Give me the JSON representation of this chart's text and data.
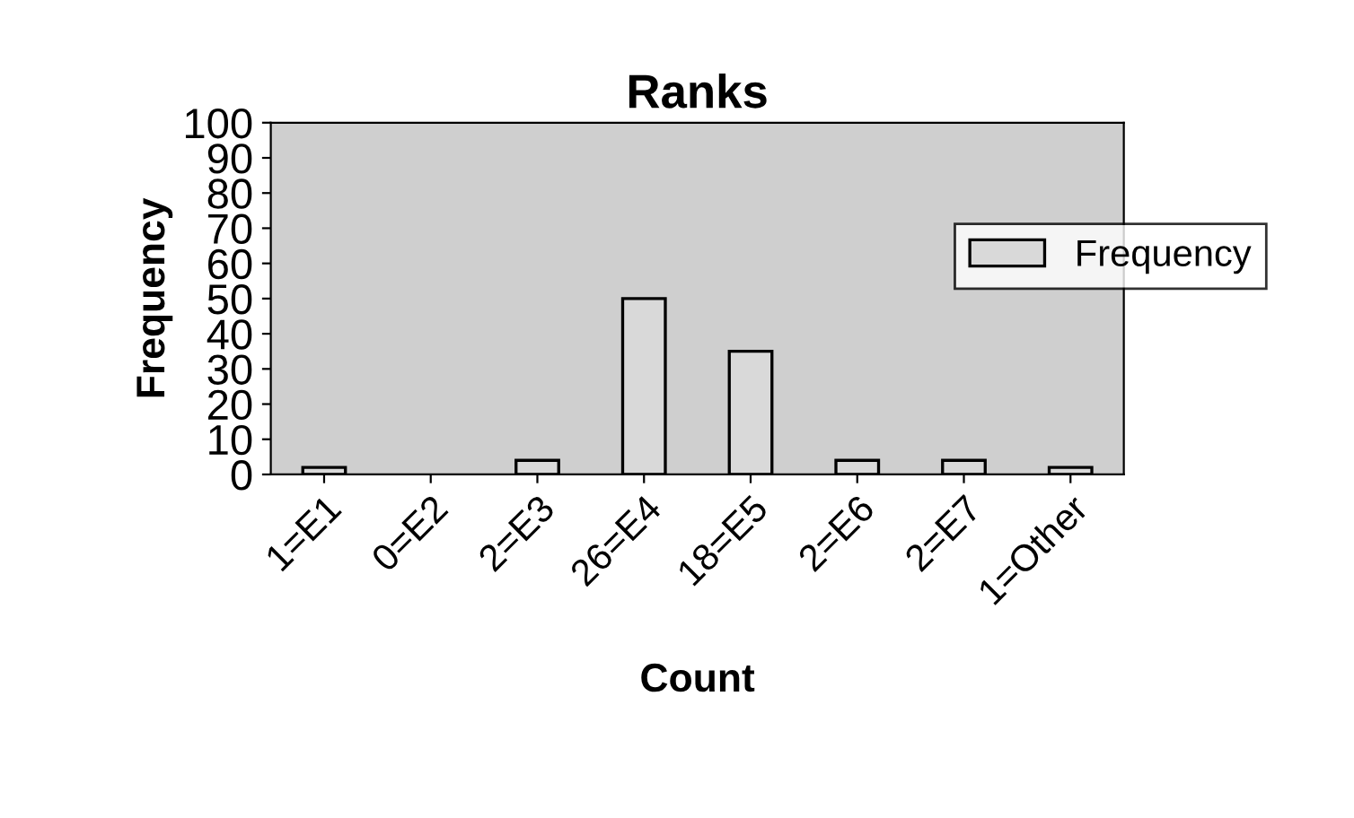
{
  "chart_data": {
    "type": "bar",
    "title": "Ranks",
    "xlabel": "Count",
    "ylabel": "Frequency",
    "categories": [
      "1=E1",
      "0=E2",
      "2=E3",
      "26=E4",
      "18=E5",
      "2=E6",
      "2=E7",
      "1=Other"
    ],
    "series": [
      {
        "name": "Frequency",
        "color": "#d9d9d9",
        "values": [
          2,
          0,
          4,
          50,
          35,
          4,
          4,
          2
        ]
      }
    ],
    "ylim": [
      0,
      100
    ],
    "yticks": [
      0,
      10,
      20,
      30,
      40,
      50,
      60,
      70,
      80,
      90,
      100
    ],
    "grid": false,
    "legend": "right"
  }
}
